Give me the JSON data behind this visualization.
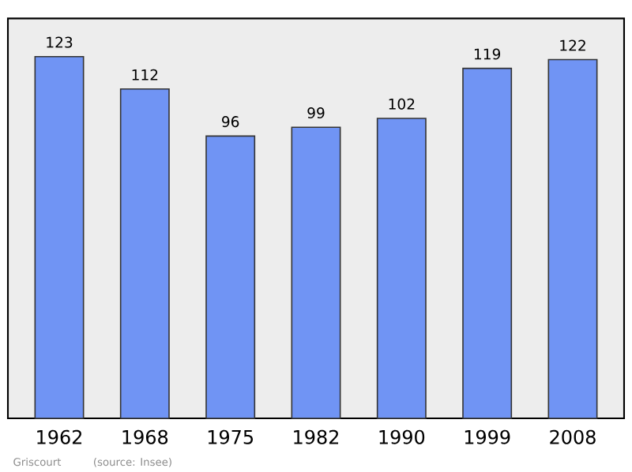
{
  "chart_data": {
    "type": "bar",
    "categories": [
      "1962",
      "1968",
      "1975",
      "1982",
      "1990",
      "1999",
      "2008"
    ],
    "values": [
      123,
      112,
      96,
      99,
      102,
      119,
      122
    ],
    "color": "#7094f4",
    "ylim": [
      0,
      136
    ],
    "data_labels": true,
    "annotations": [
      "Griscourt",
      "(source: Insee)"
    ]
  }
}
